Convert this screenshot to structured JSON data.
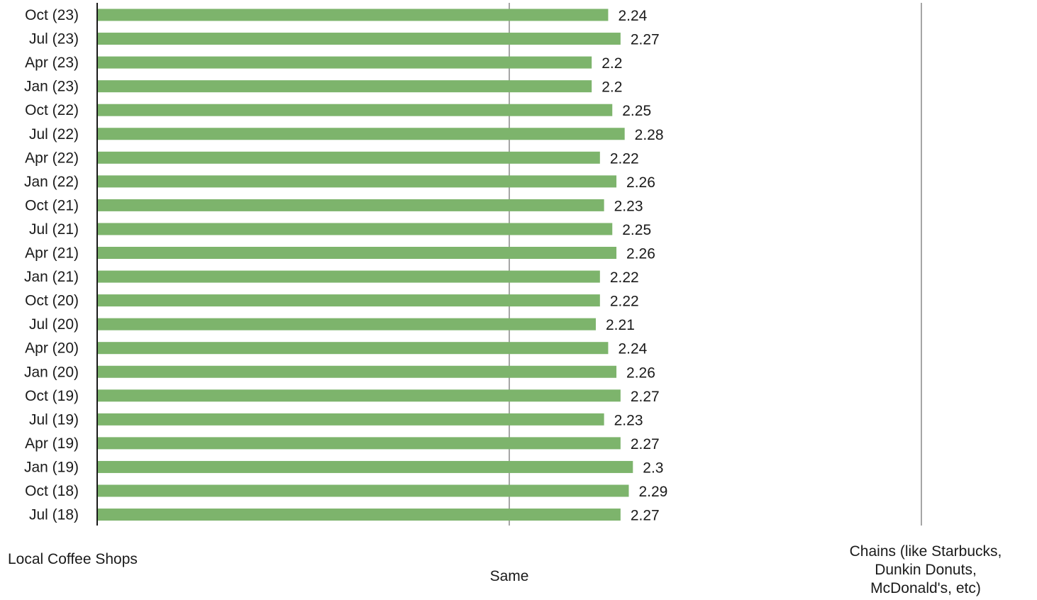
{
  "chart_data": {
    "type": "bar",
    "orientation": "horizontal",
    "categories": [
      "Oct (23)",
      "Jul (23)",
      "Apr (23)",
      "Jan (23)",
      "Oct (22)",
      "Jul (22)",
      "Apr (22)",
      "Jan (22)",
      "Oct (21)",
      "Jul (21)",
      "Apr (21)",
      "Jan (21)",
      "Oct (20)",
      "Jul (20)",
      "Apr (20)",
      "Jan (20)",
      "Oct (19)",
      "Jul (19)",
      "Apr (19)",
      "Jan (19)",
      "Oct (18)",
      "Jul (18)"
    ],
    "values": [
      2.24,
      2.27,
      2.2,
      2.2,
      2.25,
      2.28,
      2.22,
      2.26,
      2.23,
      2.25,
      2.26,
      2.22,
      2.22,
      2.21,
      2.24,
      2.26,
      2.27,
      2.23,
      2.27,
      2.3,
      2.29,
      2.27
    ],
    "value_labels": [
      "2.24",
      "2.27",
      "2.2",
      "2.2",
      "2.25",
      "2.28",
      "2.22",
      "2.26",
      "2.23",
      "2.25",
      "2.26",
      "2.22",
      "2.22",
      "2.21",
      "2.24",
      "2.26",
      "2.27",
      "2.23",
      "2.27",
      "2.3",
      "2.29",
      "2.27"
    ],
    "xlim": [
      1,
      3
    ],
    "gridlines_at": [
      2,
      3
    ],
    "scale_labels": {
      "left": "Local Coffee Shops",
      "middle": "Same",
      "right": "Chains (like Starbucks,\nDunkin Donuts,\nMcDonald's, etc)"
    },
    "bar_color": "#7db46c",
    "grid_color": "#a6a6a6",
    "axis_color": "#1a1a1a",
    "legend": "none"
  }
}
